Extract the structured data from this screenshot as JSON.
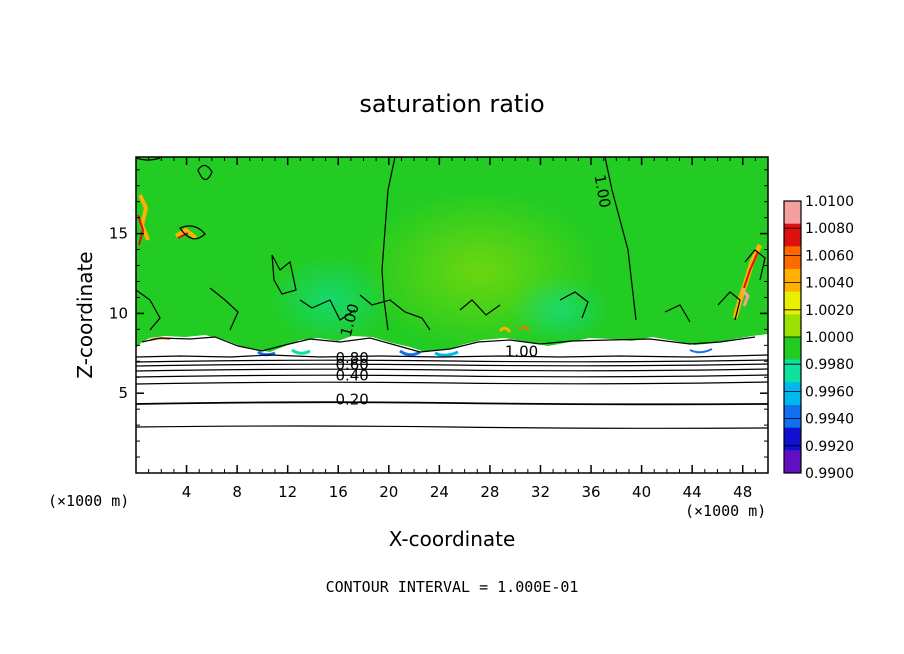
{
  "chart_data": {
    "type": "heatmap",
    "title": "saturation ratio",
    "xlabel": "X-coordinate",
    "ylabel": "Z-coordinate",
    "x_unit": "(×1000 m)",
    "x_ticks": [
      4,
      8,
      12,
      16,
      20,
      24,
      28,
      32,
      36,
      40,
      44,
      48
    ],
    "y_ticks": [
      5,
      10,
      15
    ],
    "xlim": [
      0,
      50
    ],
    "ylim": [
      0,
      19.8
    ],
    "colorbar": {
      "levels": [
        "1.0100",
        "1.0080",
        "1.0060",
        "1.0040",
        "1.0020",
        "1.0000",
        "0.9980",
        "0.9960",
        "0.9940",
        "0.9920",
        "0.9900"
      ],
      "colors": [
        "#f4a0a0",
        "#e01010",
        "#ff6a00",
        "#ffb000",
        "#e8f000",
        "#9be000",
        "#22cc22",
        "#10e0a0",
        "#00b8f0",
        "#1070f0",
        "#1010d0",
        "#6010c0"
      ]
    },
    "contour_labels": [
      {
        "text": "1.00",
        "x": 36.5,
        "y": 17.6
      },
      {
        "text": "1.00",
        "x": 17.3,
        "y": 9.5
      },
      {
        "text": "1.00",
        "x": 30.5,
        "y": 7.3
      },
      {
        "text": "0.80",
        "x": 17.1,
        "y": 6.9
      },
      {
        "text": "0.60",
        "x": 17.1,
        "y": 6.5
      },
      {
        "text": "0.40",
        "x": 17.1,
        "y": 5.8
      },
      {
        "text": "0.20",
        "x": 17.1,
        "y": 4.3
      }
    ],
    "contour_interval": "CONTOUR INTERVAL = 1.000E-01"
  },
  "colors": {
    "background": "#ffffff",
    "moist_field": "#22cc22",
    "dry_field": "#ffffff",
    "contour_line": "#000000"
  }
}
